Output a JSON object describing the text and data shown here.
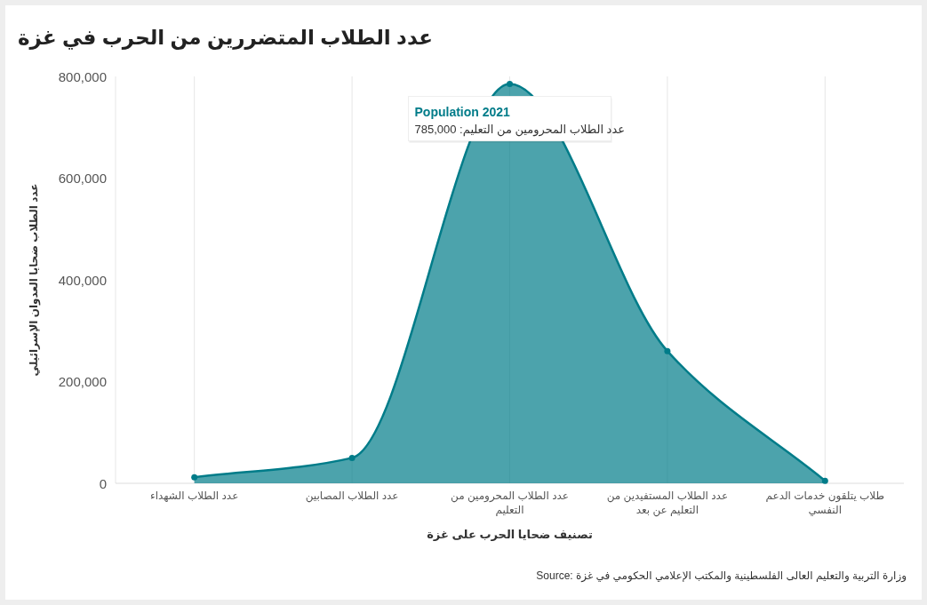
{
  "chart_data": {
    "type": "area",
    "title": "عدد الطلاب المتضررين من الحرب في غزة",
    "xlabel": "تصنيف ضحايا الحرب على غزة",
    "ylabel": "عدد الطلاب ضحايا العدوان الإسرائيلي",
    "categories": [
      "عدد الطلاب الشهداء",
      "عدد الطلاب المصابين",
      "عدد الطلاب المحرومين من التعليم",
      "عدد الطلاب المستفيدين من التعليم عن بعد",
      "طلاب يتلقون خدمات الدعم النفسي"
    ],
    "series": [
      {
        "name": "Population 2021",
        "color": "#007c89",
        "values": [
          12000,
          50000,
          785000,
          260000,
          5000
        ]
      }
    ],
    "ylim": [
      0,
      800000
    ],
    "yticks": [
      0,
      {
        "value": 200000,
        "label": "200,000"
      },
      {
        "value": 400000,
        "label": "400,000"
      },
      {
        "value": 600000,
        "label": "600,000"
      },
      {
        "value": 800000,
        "label": "800,000"
      }
    ],
    "grid": "x",
    "marker": "circle",
    "annotations": [
      "عدد الطلاب المحرومين من التعليم: 785,000",
      "Source: وزارة التربية والتعليم العالى الفلسطينية والمكتب الإعلامي الحكومي في غزة"
    ]
  }
}
